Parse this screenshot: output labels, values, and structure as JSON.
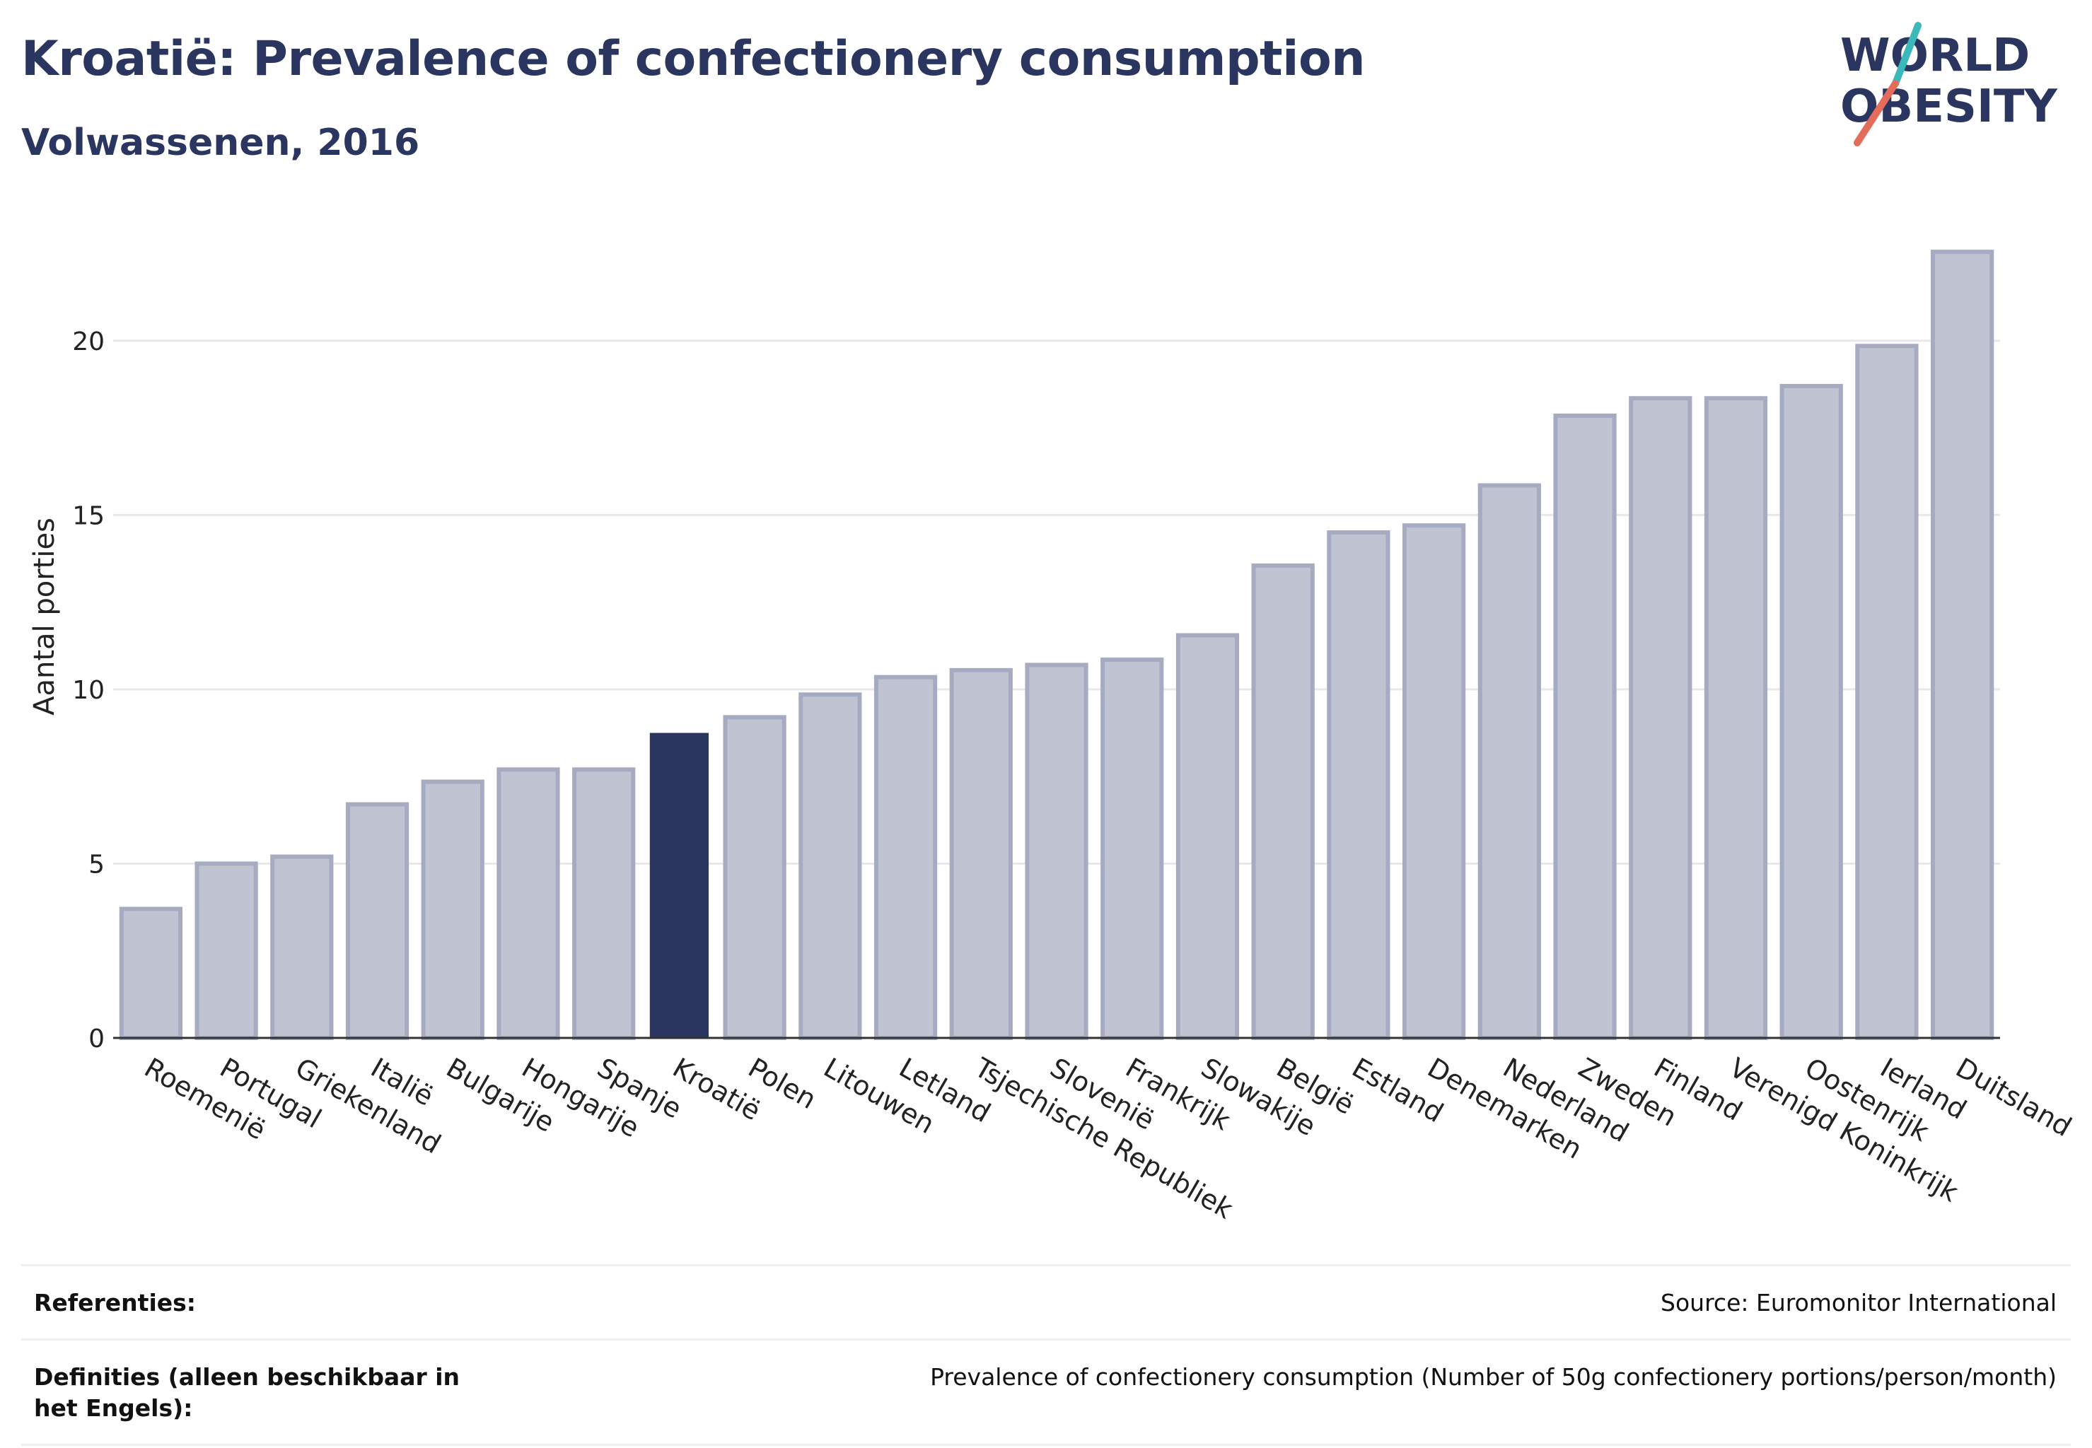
{
  "header": {
    "title": "Kroatië: Prevalence of confectionery consumption",
    "subtitle": "Volwassenen, 2016"
  },
  "logo": {
    "line1": "WORLD",
    "line2": "OBESITY",
    "colors": {
      "text": "#2a3560",
      "teal": "#3bb8b9",
      "coral": "#e46c5a"
    }
  },
  "colors": {
    "bar": "#2a3560",
    "bar_muted": "#c0c3d1",
    "bar_border": "#a6abc1",
    "grid": "#e8e8ec",
    "axis": "#333333"
  },
  "chart_data": {
    "type": "bar",
    "title": "Kroatië: Prevalence of confectionery consumption",
    "subtitle": "Volwassenen, 2016",
    "ylabel": "Aantal porties",
    "xlabel": "",
    "ylim": [
      0,
      23
    ],
    "yticks": [
      0,
      5,
      10,
      15,
      20
    ],
    "grid": true,
    "highlight": "Kroatië",
    "categories": [
      "Roemenië",
      "Portugal",
      "Griekenland",
      "Italië",
      "Bulgarije",
      "Hongarije",
      "Spanje",
      "Kroatië",
      "Polen",
      "Litouwen",
      "Letland",
      "Tsjechische Republiek",
      "Slovenië",
      "Frankrijk",
      "Slowakije",
      "België",
      "Estland",
      "Denemarken",
      "Nederland",
      "Zweden",
      "Finland",
      "Verenigd Koninkrijk",
      "Oostenrijk",
      "Ierland",
      "Duitsland"
    ],
    "values": [
      3.7,
      5.0,
      5.2,
      6.7,
      7.35,
      7.7,
      7.7,
      8.75,
      9.2,
      9.85,
      10.35,
      10.55,
      10.7,
      10.85,
      11.55,
      13.55,
      14.5,
      14.7,
      15.85,
      17.85,
      18.35,
      18.35,
      18.7,
      19.85,
      22.55
    ]
  },
  "footer": {
    "references_label": "Referenties:",
    "references_value": "Source: Euromonitor International",
    "definitions_label": "Definities (alleen beschikbaar in het Engels):",
    "definitions_value": "Prevalence of confectionery consumption (Number of 50g confectionery portions/person/month)"
  }
}
